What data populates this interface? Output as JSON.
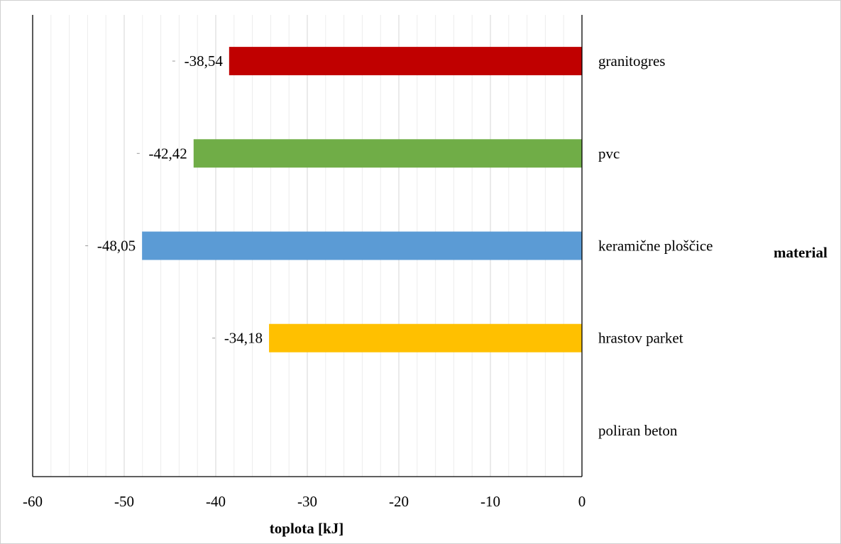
{
  "chart_data": {
    "type": "bar",
    "orientation": "horizontal",
    "categories": [
      "granitogres",
      "pvc",
      "keramične ploščice",
      "hrastov parket",
      "poliran beton"
    ],
    "values": [
      -38.54,
      -42.42,
      -48.05,
      -34.18,
      null
    ],
    "data_labels": [
      "-38,54",
      "-42,42",
      "-48,05",
      "-34,18",
      ""
    ],
    "bar_colors": [
      "#c00000",
      "#70ad47",
      "#5b9bd5",
      "#ffc000",
      "#ffffff"
    ],
    "x_ticks": [
      "-60",
      "-50",
      "-40",
      "-30",
      "-20",
      "-10",
      "0"
    ],
    "xlim": [
      -60,
      0
    ],
    "xlabel": "toplota [kJ]",
    "ylabel": "material",
    "grid": "vertical minor gridlines on",
    "legend": "none"
  }
}
